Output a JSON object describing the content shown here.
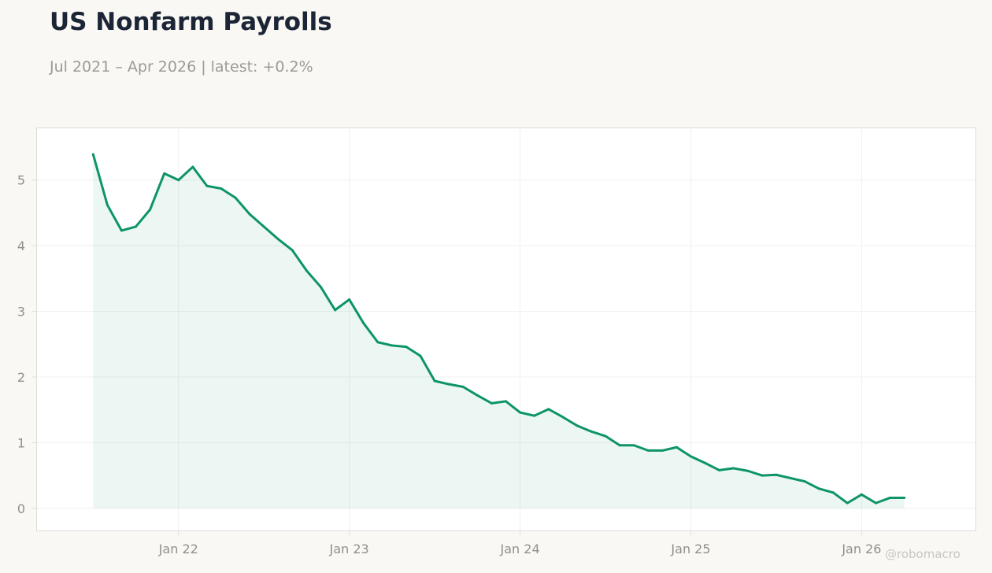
{
  "header": {
    "title": "US Nonfarm Payrolls",
    "subtitle": "Jul 2021 – Apr 2026 | latest: +0.2%"
  },
  "watermark": "@robomacro",
  "colors": {
    "background": "#f9f8f5",
    "line": "#0d9468",
    "fill": "#0d9468",
    "grid": "#f0f0ee",
    "frame": "#dedcd6"
  },
  "chart_data": {
    "type": "area",
    "title": "US Nonfarm Payrolls",
    "subtitle": "Jul 2021 – Apr 2026 | latest: +0.2%",
    "xlabel": "",
    "ylabel": "",
    "ylim": [
      -0.35,
      5.8
    ],
    "xlim": [
      "2021-03",
      "2026-09"
    ],
    "grid": true,
    "y_ticks": [
      0,
      1,
      2,
      3,
      4,
      5
    ],
    "x_ticks": [
      {
        "date": "2022-01",
        "label": "Jan 22"
      },
      {
        "date": "2023-01",
        "label": "Jan 23"
      },
      {
        "date": "2024-01",
        "label": "Jan 24"
      },
      {
        "date": "2025-01",
        "label": "Jan 25"
      },
      {
        "date": "2026-01",
        "label": "Jan 26"
      }
    ],
    "x": [
      "2021-07",
      "2021-08",
      "2021-09",
      "2021-10",
      "2021-11",
      "2021-12",
      "2022-01",
      "2022-02",
      "2022-03",
      "2022-04",
      "2022-05",
      "2022-06",
      "2022-07",
      "2022-08",
      "2022-09",
      "2022-10",
      "2022-11",
      "2022-12",
      "2023-01",
      "2023-02",
      "2023-03",
      "2023-04",
      "2023-05",
      "2023-06",
      "2023-07",
      "2023-08",
      "2023-09",
      "2023-10",
      "2023-11",
      "2023-12",
      "2024-01",
      "2024-02",
      "2024-03",
      "2024-04",
      "2024-05",
      "2024-06",
      "2024-07",
      "2024-08",
      "2024-09",
      "2024-10",
      "2024-11",
      "2024-12",
      "2025-01",
      "2025-02",
      "2025-03",
      "2025-04",
      "2025-05",
      "2025-06",
      "2025-07",
      "2025-08",
      "2025-09",
      "2025-10",
      "2025-11",
      "2025-12",
      "2026-01",
      "2026-02",
      "2026-03",
      "2026-04"
    ],
    "series": [
      {
        "values": [
          5.39,
          4.62,
          4.23,
          4.29,
          4.55,
          5.1,
          5.0,
          5.2,
          4.91,
          4.87,
          4.73,
          4.48,
          4.29,
          4.1,
          3.93,
          3.62,
          3.37,
          3.02,
          3.18,
          2.82,
          2.53,
          2.48,
          2.46,
          2.32,
          1.94,
          1.89,
          1.85,
          1.72,
          1.6,
          1.63,
          1.46,
          1.41,
          1.51,
          1.39,
          1.26,
          1.17,
          1.1,
          0.96,
          0.96,
          0.88,
          0.88,
          0.93,
          0.79,
          0.69,
          0.58,
          0.61,
          0.57,
          0.5,
          0.51,
          0.46,
          0.41,
          0.3,
          0.24,
          0.08,
          0.21,
          0.08,
          0.16,
          0.16
        ]
      }
    ]
  }
}
